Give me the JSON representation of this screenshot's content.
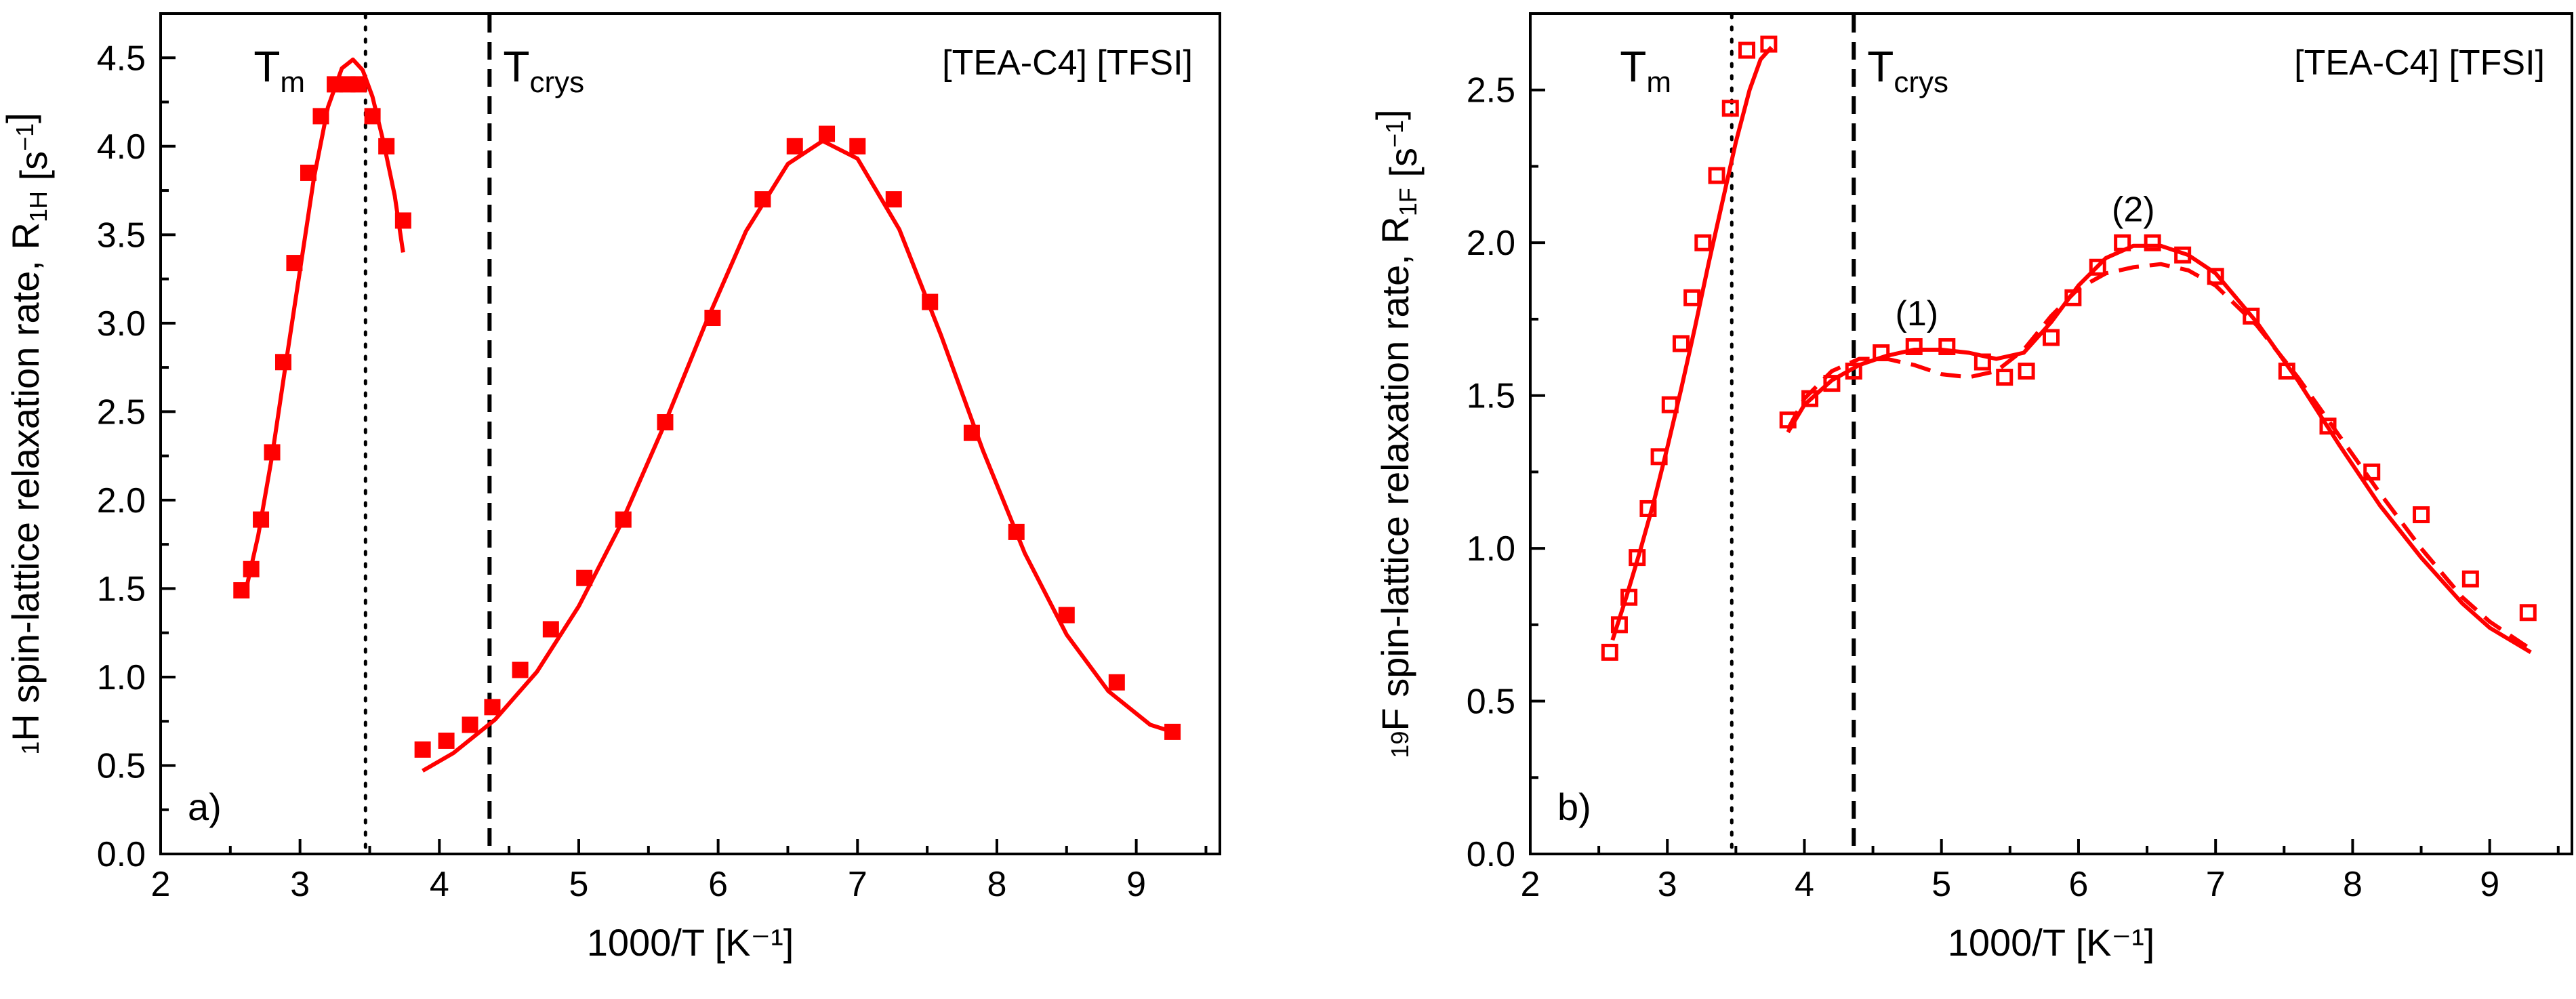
{
  "chart_data": [
    {
      "type": "scatter",
      "panel_label": "a)",
      "annotation": "[TEA-C4] [TFSI]",
      "xlabel": "1000/T [K⁻¹]",
      "ylabel": "¹H spin-lattice relaxation rate,  R₁H [s⁻¹]",
      "ylabel_parts": {
        "sup": "1",
        "main": "H spin-lattice relaxation rate,  R",
        "sub": "1H",
        "unit_open": " [s",
        "unit_sup": "−1",
        "unit_close": "]"
      },
      "xlim": [
        2,
        9.6
      ],
      "ylim": [
        0,
        4.75
      ],
      "xticks": [
        2,
        3,
        4,
        5,
        6,
        7,
        8,
        9
      ],
      "yticks": [
        0.0,
        0.5,
        1.0,
        1.5,
        2.0,
        2.5,
        3.0,
        3.5,
        4.0,
        4.5
      ],
      "ytick_decimals": 1,
      "vlines": [
        {
          "x": 3.47,
          "style": "dotted",
          "label": "T",
          "label_sub": "m"
        },
        {
          "x": 4.36,
          "style": "dashed",
          "label": "T",
          "label_sub": "crys"
        }
      ],
      "series": [
        {
          "name": "measured R1H",
          "marker": "filled-square",
          "color": "#ff0000",
          "x": [
            2.58,
            2.65,
            2.72,
            2.8,
            2.88,
            2.96,
            3.06,
            3.15,
            3.25,
            3.34,
            3.42,
            3.52,
            3.62,
            3.74,
            3.88,
            4.05,
            4.22,
            4.38,
            4.58,
            4.8,
            5.04,
            5.32,
            5.62,
            5.96,
            6.32,
            6.55,
            6.78,
            7.0,
            7.26,
            7.52,
            7.82,
            8.14,
            8.5,
            8.86,
            9.26
          ],
          "y": [
            1.49,
            1.61,
            1.89,
            2.27,
            2.78,
            3.34,
            3.85,
            4.17,
            4.35,
            4.35,
            4.35,
            4.17,
            4.0,
            3.58,
            0.59,
            0.64,
            0.73,
            0.83,
            1.04,
            1.27,
            1.56,
            1.89,
            2.44,
            3.03,
            3.7,
            4.0,
            4.07,
            4.0,
            3.7,
            3.12,
            2.38,
            1.82,
            1.35,
            0.97,
            0.69
          ]
        },
        {
          "name": "fit high-T",
          "line": "solid",
          "color": "#ff0000",
          "x": [
            2.6,
            2.7,
            2.8,
            2.9,
            3.0,
            3.1,
            3.2,
            3.3,
            3.38,
            3.45,
            3.52,
            3.6,
            3.68,
            3.74
          ],
          "y": [
            1.45,
            1.8,
            2.25,
            2.78,
            3.3,
            3.82,
            4.22,
            4.44,
            4.49,
            4.43,
            4.28,
            4.02,
            3.72,
            3.4
          ]
        },
        {
          "name": "fit low-T",
          "line": "solid",
          "color": "#ff0000",
          "x": [
            3.88,
            4.1,
            4.4,
            4.7,
            5.0,
            5.3,
            5.6,
            5.9,
            6.2,
            6.5,
            6.75,
            7.0,
            7.3,
            7.6,
            7.9,
            8.2,
            8.5,
            8.8,
            9.1,
            9.3
          ],
          "y": [
            0.47,
            0.57,
            0.76,
            1.03,
            1.4,
            1.86,
            2.4,
            2.98,
            3.52,
            3.9,
            4.03,
            3.93,
            3.53,
            2.93,
            2.28,
            1.7,
            1.24,
            0.92,
            0.73,
            0.68
          ]
        }
      ]
    },
    {
      "type": "scatter",
      "panel_label": "b)",
      "annotation": "[TEA-C4] [TFSI]",
      "xlabel": "1000/T [K⁻¹]",
      "ylabel": "¹⁹F spin-lattice relaxation rate,  R₁F [s⁻¹]",
      "ylabel_parts": {
        "sup": "19",
        "main": "F spin-lattice relaxation rate,  R",
        "sub": "1F",
        "unit_open": " [s",
        "unit_sup": "−1",
        "unit_close": "]"
      },
      "xlim": [
        2,
        9.6
      ],
      "ylim": [
        0,
        2.75
      ],
      "xticks": [
        2,
        3,
        4,
        5,
        6,
        7,
        8,
        9
      ],
      "yticks": [
        0.0,
        0.5,
        1.0,
        1.5,
        2.0,
        2.5
      ],
      "ytick_decimals": 1,
      "vlines": [
        {
          "x": 3.47,
          "style": "dotted",
          "label": "T",
          "label_sub": "m"
        },
        {
          "x": 4.36,
          "style": "dashed",
          "label": "T",
          "label_sub": "crys"
        }
      ],
      "peak_labels": [
        {
          "text": "(1)",
          "x": 4.82,
          "y": 1.73
        },
        {
          "text": "(2)",
          "x": 6.4,
          "y": 2.07
        }
      ],
      "series": [
        {
          "name": "measured R1F",
          "marker": "open-square",
          "color": "#ff0000",
          "x": [
            2.58,
            2.65,
            2.72,
            2.78,
            2.86,
            2.94,
            3.02,
            3.1,
            3.18,
            3.26,
            3.36,
            3.46,
            3.58,
            3.74,
            3.88,
            4.04,
            4.2,
            4.36,
            4.56,
            4.8,
            5.04,
            5.3,
            5.46,
            5.62,
            5.8,
            5.96,
            6.14,
            6.32,
            6.54,
            6.76,
            7.0,
            7.26,
            7.52,
            7.82,
            8.14,
            8.5,
            8.86,
            9.28
          ],
          "y": [
            0.66,
            0.75,
            0.84,
            0.97,
            1.13,
            1.3,
            1.47,
            1.67,
            1.82,
            2.0,
            2.22,
            2.44,
            2.63,
            2.65,
            1.42,
            1.49,
            1.54,
            1.58,
            1.64,
            1.66,
            1.66,
            1.61,
            1.56,
            1.58,
            1.69,
            1.82,
            1.92,
            2.0,
            2.0,
            1.96,
            1.89,
            1.76,
            1.58,
            1.4,
            1.25,
            1.11,
            0.9,
            0.79
          ]
        },
        {
          "name": "fit high-T",
          "line": "solid",
          "color": "#ff0000",
          "x": [
            2.6,
            2.7,
            2.8,
            2.9,
            3.0,
            3.1,
            3.2,
            3.3,
            3.4,
            3.5,
            3.6,
            3.68,
            3.76
          ],
          "y": [
            0.7,
            0.84,
            0.99,
            1.15,
            1.33,
            1.52,
            1.72,
            1.93,
            2.13,
            2.33,
            2.5,
            2.6,
            2.64
          ]
        },
        {
          "name": "fit low-T",
          "line": "solid",
          "color": "#ff0000",
          "x": [
            3.88,
            4.0,
            4.2,
            4.4,
            4.6,
            4.8,
            5.0,
            5.2,
            5.4,
            5.6,
            5.8,
            6.0,
            6.2,
            6.4,
            6.6,
            6.8,
            7.0,
            7.3,
            7.6,
            7.9,
            8.2,
            8.5,
            8.8,
            9.0,
            9.3
          ],
          "y": [
            1.38,
            1.47,
            1.55,
            1.6,
            1.63,
            1.65,
            1.65,
            1.64,
            1.62,
            1.64,
            1.74,
            1.86,
            1.95,
            1.99,
            1.99,
            1.96,
            1.9,
            1.74,
            1.55,
            1.34,
            1.14,
            0.97,
            0.82,
            0.74,
            0.66
          ]
        },
        {
          "name": "fit low-T alt",
          "line": "dashed",
          "color": "#ff0000",
          "x": [
            3.88,
            4.0,
            4.2,
            4.4,
            4.6,
            4.8,
            5.0,
            5.2,
            5.4,
            5.6,
            5.8,
            6.0,
            6.2,
            6.4,
            6.6,
            6.8,
            7.0,
            7.3,
            7.6,
            7.9,
            8.2,
            8.5,
            8.8,
            9.0,
            9.3
          ],
          "y": [
            1.39,
            1.49,
            1.58,
            1.62,
            1.62,
            1.6,
            1.57,
            1.56,
            1.58,
            1.65,
            1.76,
            1.85,
            1.9,
            1.92,
            1.93,
            1.91,
            1.86,
            1.73,
            1.56,
            1.37,
            1.18,
            1.0,
            0.84,
            0.76,
            0.67
          ]
        }
      ]
    }
  ]
}
